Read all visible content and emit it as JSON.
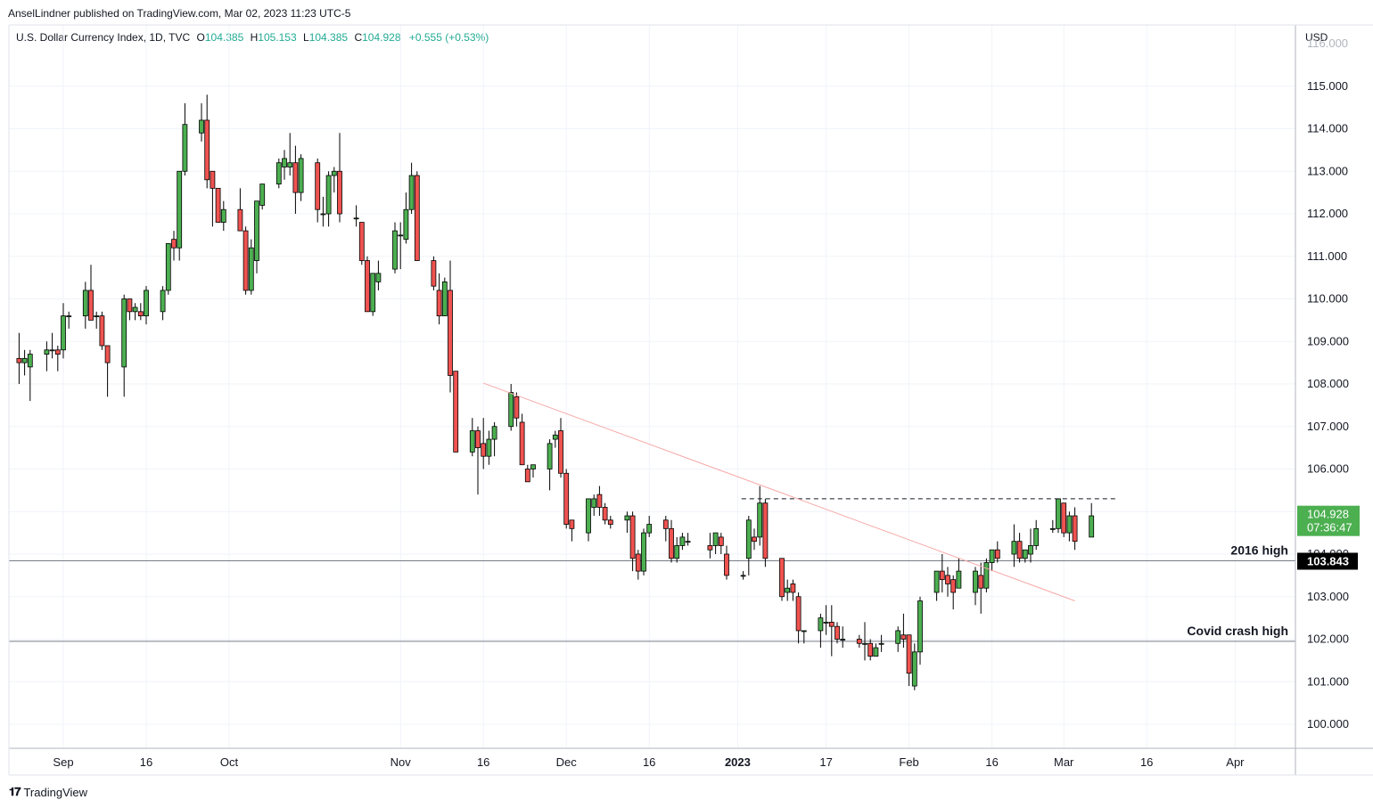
{
  "header": {
    "published_by": "AnselLindner published on TradingView.com, Mar 02, 2023 11:23 UTC-5"
  },
  "legend": {
    "symbol": "U.S. Dollar Currency Index, 1D, TVC",
    "open_label": "O",
    "open": "104.385",
    "high_label": "H",
    "high": "105.153",
    "low_label": "L",
    "low": "104.385",
    "close_label": "C",
    "close": "104.928",
    "change": "+0.555 (+0.53%)"
  },
  "currency": "USD",
  "footer": {
    "brand": "TradingView"
  },
  "colors": {
    "up": "#4caf50",
    "down": "#ef5350",
    "last_price_bg": "#4caf50",
    "level_label_bg": "#000000",
    "trendline": "#f7a8a8"
  },
  "chart_data": {
    "type": "candlestick",
    "y_ticks": [
      100,
      101,
      102,
      103,
      104,
      105,
      106,
      107,
      108,
      109,
      110,
      111,
      112,
      113,
      114,
      115
    ],
    "y_tick_labels": [
      "100.000",
      "101.000",
      "102.000",
      "103.000",
      "",
      "105.000",
      "106.000",
      "107.000",
      "108.000",
      "109.000",
      "110.000",
      "111.000",
      "112.000",
      "113.000",
      "114.000",
      "115.000"
    ],
    "ylim": [
      99.5,
      116
    ],
    "x_labels": [
      {
        "text": "Sep",
        "date": "2022-09-01"
      },
      {
        "text": "16",
        "date": "2022-09-16"
      },
      {
        "text": "Oct",
        "date": "2022-10-01"
      },
      {
        "text": "Nov",
        "date": "2022-11-01"
      },
      {
        "text": "16",
        "date": "2022-11-16"
      },
      {
        "text": "Dec",
        "date": "2022-12-01"
      },
      {
        "text": "16",
        "date": "2022-12-16"
      },
      {
        "text": "2023",
        "date": "2023-01-01",
        "bold": true
      },
      {
        "text": "17",
        "date": "2023-01-17"
      },
      {
        "text": "Feb",
        "date": "2023-02-01"
      },
      {
        "text": "16",
        "date": "2023-02-16"
      },
      {
        "text": "Mar",
        "date": "2023-03-01"
      },
      {
        "text": "16",
        "date": "2023-03-16"
      },
      {
        "text": "Apr",
        "date": "2023-04-01"
      }
    ],
    "candles": [
      {
        "d": "2022-08-24",
        "o": 108.6,
        "h": 109.2,
        "l": 108.0,
        "c": 108.5
      },
      {
        "d": "2022-08-25",
        "o": 108.5,
        "h": 108.8,
        "l": 108.2,
        "c": 108.6
      },
      {
        "d": "2022-08-26",
        "o": 108.4,
        "h": 108.8,
        "l": 107.6,
        "c": 108.7
      },
      {
        "d": "2022-08-29",
        "o": 108.7,
        "h": 109.0,
        "l": 108.3,
        "c": 108.8
      },
      {
        "d": "2022-08-30",
        "o": 108.8,
        "h": 109.2,
        "l": 108.6,
        "c": 108.8
      },
      {
        "d": "2022-08-31",
        "o": 108.8,
        "h": 108.9,
        "l": 108.3,
        "c": 108.7
      },
      {
        "d": "2022-09-01",
        "o": 108.8,
        "h": 109.9,
        "l": 108.6,
        "c": 109.6
      },
      {
        "d": "2022-09-02",
        "o": 109.6,
        "h": 109.7,
        "l": 109.3,
        "c": 109.6
      },
      {
        "d": "2022-09-05",
        "o": 109.6,
        "h": 110.4,
        "l": 109.3,
        "c": 110.2
      },
      {
        "d": "2022-09-06",
        "o": 110.2,
        "h": 110.8,
        "l": 109.6,
        "c": 109.5
      },
      {
        "d": "2022-09-07",
        "o": 109.6,
        "h": 109.7,
        "l": 109.3,
        "c": 109.6
      },
      {
        "d": "2022-09-08",
        "o": 109.6,
        "h": 109.7,
        "l": 108.8,
        "c": 108.9
      },
      {
        "d": "2022-09-09",
        "o": 108.9,
        "h": 108.9,
        "l": 107.7,
        "c": 108.5
      },
      {
        "d": "2022-09-12",
        "o": 108.4,
        "h": 110.1,
        "l": 107.7,
        "c": 110.0
      },
      {
        "d": "2022-09-13",
        "o": 110.0,
        "h": 110.0,
        "l": 109.5,
        "c": 109.7
      },
      {
        "d": "2022-09-14",
        "o": 109.7,
        "h": 109.9,
        "l": 109.5,
        "c": 109.8
      },
      {
        "d": "2022-09-15",
        "o": 109.7,
        "h": 109.9,
        "l": 109.5,
        "c": 109.6
      },
      {
        "d": "2022-09-16",
        "o": 109.6,
        "h": 110.3,
        "l": 109.4,
        "c": 110.2
      },
      {
        "d": "2022-09-19",
        "o": 109.7,
        "h": 110.3,
        "l": 109.5,
        "c": 110.2
      },
      {
        "d": "2022-09-20",
        "o": 110.2,
        "h": 111.3,
        "l": 110.1,
        "c": 111.3
      },
      {
        "d": "2022-09-21",
        "o": 111.4,
        "h": 111.6,
        "l": 110.9,
        "c": 111.2
      },
      {
        "d": "2022-09-22",
        "o": 111.2,
        "h": 113.0,
        "l": 110.9,
        "c": 113.0
      },
      {
        "d": "2022-09-23",
        "o": 113.0,
        "h": 114.6,
        "l": 112.9,
        "c": 114.1
      },
      {
        "d": "2022-09-26",
        "o": 113.9,
        "h": 114.6,
        "l": 113.7,
        "c": 114.2
      },
      {
        "d": "2022-09-27",
        "o": 114.2,
        "h": 114.8,
        "l": 112.6,
        "c": 112.8
      },
      {
        "d": "2022-09-28",
        "o": 113.0,
        "h": 113.0,
        "l": 111.7,
        "c": 112.6
      },
      {
        "d": "2022-09-29",
        "o": 112.6,
        "h": 112.6,
        "l": 111.8,
        "c": 111.8
      },
      {
        "d": "2022-09-30",
        "o": 111.8,
        "h": 112.3,
        "l": 111.6,
        "c": 112.1
      },
      {
        "d": "2022-10-03",
        "o": 112.1,
        "h": 112.6,
        "l": 111.6,
        "c": 111.6
      },
      {
        "d": "2022-10-04",
        "o": 111.6,
        "h": 111.7,
        "l": 110.1,
        "c": 110.2
      },
      {
        "d": "2022-10-05",
        "o": 110.2,
        "h": 111.4,
        "l": 110.1,
        "c": 111.2
      },
      {
        "d": "2022-10-06",
        "o": 110.9,
        "h": 112.3,
        "l": 110.6,
        "c": 112.3
      },
      {
        "d": "2022-10-07",
        "o": 112.2,
        "h": 112.7,
        "l": 112.1,
        "c": 112.7
      },
      {
        "d": "2022-10-10",
        "o": 112.7,
        "h": 113.3,
        "l": 112.6,
        "c": 113.2
      },
      {
        "d": "2022-10-11",
        "o": 113.1,
        "h": 113.5,
        "l": 112.8,
        "c": 113.3
      },
      {
        "d": "2022-10-12",
        "o": 113.1,
        "h": 113.9,
        "l": 112.9,
        "c": 113.2
      },
      {
        "d": "2022-10-13",
        "o": 113.2,
        "h": 113.6,
        "l": 112.0,
        "c": 112.5
      },
      {
        "d": "2022-10-14",
        "o": 112.5,
        "h": 113.4,
        "l": 112.3,
        "c": 113.3
      },
      {
        "d": "2022-10-17",
        "o": 113.2,
        "h": 113.3,
        "l": 111.8,
        "c": 112.1
      },
      {
        "d": "2022-10-18",
        "o": 112.0,
        "h": 112.4,
        "l": 111.7,
        "c": 112.0
      },
      {
        "d": "2022-10-19",
        "o": 112.0,
        "h": 113.0,
        "l": 111.7,
        "c": 112.9
      },
      {
        "d": "2022-10-20",
        "o": 112.9,
        "h": 113.1,
        "l": 112.5,
        "c": 113.0
      },
      {
        "d": "2022-10-21",
        "o": 113.0,
        "h": 113.9,
        "l": 111.8,
        "c": 112.0
      },
      {
        "d": "2022-10-24",
        "o": 111.9,
        "h": 112.2,
        "l": 111.7,
        "c": 111.9
      },
      {
        "d": "2022-10-25",
        "o": 111.8,
        "h": 111.8,
        "l": 110.8,
        "c": 110.9
      },
      {
        "d": "2022-10-26",
        "o": 110.9,
        "h": 111.0,
        "l": 109.7,
        "c": 109.7
      },
      {
        "d": "2022-10-27",
        "o": 109.7,
        "h": 110.6,
        "l": 109.6,
        "c": 110.6
      },
      {
        "d": "2022-10-28",
        "o": 110.4,
        "h": 110.9,
        "l": 110.2,
        "c": 110.6
      },
      {
        "d": "2022-10-31",
        "o": 110.7,
        "h": 111.8,
        "l": 110.6,
        "c": 111.6
      },
      {
        "d": "2022-11-01",
        "o": 111.5,
        "h": 111.8,
        "l": 110.7,
        "c": 111.5
      },
      {
        "d": "2022-11-02",
        "o": 111.4,
        "h": 112.5,
        "l": 111.3,
        "c": 112.1
      },
      {
        "d": "2022-11-03",
        "o": 112.1,
        "h": 113.2,
        "l": 112.0,
        "c": 112.9
      },
      {
        "d": "2022-11-04",
        "o": 112.9,
        "h": 113.0,
        "l": 110.9,
        "c": 110.9
      },
      {
        "d": "2022-11-07",
        "o": 110.9,
        "h": 111.0,
        "l": 110.2,
        "c": 110.3
      },
      {
        "d": "2022-11-08",
        "o": 110.2,
        "h": 110.6,
        "l": 109.4,
        "c": 109.6
      },
      {
        "d": "2022-11-09",
        "o": 109.6,
        "h": 110.5,
        "l": 109.6,
        "c": 110.4
      },
      {
        "d": "2022-11-10",
        "o": 110.2,
        "h": 110.9,
        "l": 107.8,
        "c": 108.2
      },
      {
        "d": "2022-11-11",
        "o": 108.3,
        "h": 108.3,
        "l": 106.4,
        "c": 106.4
      },
      {
        "d": "2022-11-14",
        "o": 106.4,
        "h": 107.2,
        "l": 106.3,
        "c": 106.9
      },
      {
        "d": "2022-11-15",
        "o": 106.9,
        "h": 107.0,
        "l": 105.4,
        "c": 106.5
      },
      {
        "d": "2022-11-16",
        "o": 106.6,
        "h": 107.2,
        "l": 106.0,
        "c": 106.3
      },
      {
        "d": "2022-11-17",
        "o": 106.3,
        "h": 106.9,
        "l": 106.1,
        "c": 106.7
      },
      {
        "d": "2022-11-18",
        "o": 106.7,
        "h": 107.1,
        "l": 106.3,
        "c": 107.0
      },
      {
        "d": "2022-11-21",
        "o": 107.0,
        "h": 108.0,
        "l": 106.9,
        "c": 107.8
      },
      {
        "d": "2022-11-22",
        "o": 107.7,
        "h": 107.8,
        "l": 107.0,
        "c": 107.2
      },
      {
        "d": "2022-11-23",
        "o": 107.1,
        "h": 107.3,
        "l": 106.1,
        "c": 106.1
      },
      {
        "d": "2022-11-24",
        "o": 106.0,
        "h": 106.1,
        "l": 105.7,
        "c": 105.7
      },
      {
        "d": "2022-11-25",
        "o": 106.0,
        "h": 106.1,
        "l": 105.8,
        "c": 106.1
      },
      {
        "d": "2022-11-28",
        "o": 106.0,
        "h": 106.7,
        "l": 105.5,
        "c": 106.6
      },
      {
        "d": "2022-11-29",
        "o": 106.7,
        "h": 106.9,
        "l": 106.5,
        "c": 106.8
      },
      {
        "d": "2022-11-30",
        "o": 106.9,
        "h": 107.2,
        "l": 105.8,
        "c": 105.9
      },
      {
        "d": "2022-12-01",
        "o": 105.9,
        "h": 106.0,
        "l": 104.6,
        "c": 104.7
      },
      {
        "d": "2022-12-02",
        "o": 104.8,
        "h": 104.8,
        "l": 104.3,
        "c": 104.6
      },
      {
        "d": "2022-12-05",
        "o": 104.5,
        "h": 105.3,
        "l": 104.3,
        "c": 105.3
      },
      {
        "d": "2022-12-06",
        "o": 105.1,
        "h": 105.4,
        "l": 104.9,
        "c": 105.3
      },
      {
        "d": "2022-12-07",
        "o": 105.4,
        "h": 105.6,
        "l": 104.9,
        "c": 105.1
      },
      {
        "d": "2022-12-08",
        "o": 105.1,
        "h": 105.2,
        "l": 104.7,
        "c": 104.8
      },
      {
        "d": "2022-12-09",
        "o": 104.8,
        "h": 104.9,
        "l": 104.6,
        "c": 104.7
      },
      {
        "d": "2022-12-12",
        "o": 104.8,
        "h": 105.0,
        "l": 104.5,
        "c": 104.9
      },
      {
        "d": "2022-12-13",
        "o": 104.9,
        "h": 105.0,
        "l": 103.6,
        "c": 103.9
      },
      {
        "d": "2022-12-14",
        "o": 104.0,
        "h": 104.1,
        "l": 103.4,
        "c": 103.6
      },
      {
        "d": "2022-12-15",
        "o": 103.6,
        "h": 104.6,
        "l": 103.5,
        "c": 104.5
      },
      {
        "d": "2022-12-16",
        "o": 104.5,
        "h": 104.9,
        "l": 104.4,
        "c": 104.7
      },
      {
        "d": "2022-12-19",
        "o": 104.8,
        "h": 104.9,
        "l": 104.3,
        "c": 104.6
      },
      {
        "d": "2022-12-20",
        "o": 104.6,
        "h": 104.8,
        "l": 103.8,
        "c": 103.9
      },
      {
        "d": "2022-12-21",
        "o": 103.9,
        "h": 104.4,
        "l": 103.8,
        "c": 104.2
      },
      {
        "d": "2022-12-22",
        "o": 104.2,
        "h": 104.5,
        "l": 104.1,
        "c": 104.4
      },
      {
        "d": "2022-12-23",
        "o": 104.3,
        "h": 104.5,
        "l": 104.2,
        "c": 104.3
      },
      {
        "d": "2022-12-27",
        "o": 104.2,
        "h": 104.5,
        "l": 103.9,
        "c": 104.1
      },
      {
        "d": "2022-12-28",
        "o": 104.2,
        "h": 104.5,
        "l": 104.0,
        "c": 104.5
      },
      {
        "d": "2022-12-29",
        "o": 104.4,
        "h": 104.5,
        "l": 104.0,
        "c": 104.2
      },
      {
        "d": "2022-12-30",
        "o": 104.0,
        "h": 104.2,
        "l": 103.4,
        "c": 103.5
      },
      {
        "d": "2023-01-02",
        "o": 103.5,
        "h": 103.6,
        "l": 103.4,
        "c": 103.5
      },
      {
        "d": "2023-01-03",
        "o": 103.9,
        "h": 104.9,
        "l": 103.5,
        "c": 104.8
      },
      {
        "d": "2023-01-04",
        "o": 104.4,
        "h": 104.6,
        "l": 104.1,
        "c": 104.3
      },
      {
        "d": "2023-01-05",
        "o": 104.4,
        "h": 105.6,
        "l": 104.2,
        "c": 105.2
      },
      {
        "d": "2023-01-06",
        "o": 105.2,
        "h": 105.3,
        "l": 103.7,
        "c": 103.9
      },
      {
        "d": "2023-01-09",
        "o": 103.9,
        "h": 103.9,
        "l": 102.9,
        "c": 103.0
      },
      {
        "d": "2023-01-10",
        "o": 103.1,
        "h": 103.4,
        "l": 102.9,
        "c": 103.2
      },
      {
        "d": "2023-01-11",
        "o": 103.3,
        "h": 103.4,
        "l": 102.9,
        "c": 103.1
      },
      {
        "d": "2023-01-12",
        "o": 103.0,
        "h": 103.1,
        "l": 101.9,
        "c": 102.2
      },
      {
        "d": "2023-01-13",
        "o": 102.2,
        "h": 102.2,
        "l": 101.9,
        "c": 102.2
      },
      {
        "d": "2023-01-16",
        "o": 102.2,
        "h": 102.6,
        "l": 101.8,
        "c": 102.5
      },
      {
        "d": "2023-01-17",
        "o": 102.4,
        "h": 102.8,
        "l": 102.1,
        "c": 102.4
      },
      {
        "d": "2023-01-18",
        "o": 102.4,
        "h": 102.8,
        "l": 101.6,
        "c": 102.3
      },
      {
        "d": "2023-01-19",
        "o": 102.3,
        "h": 102.4,
        "l": 101.9,
        "c": 102.0
      },
      {
        "d": "2023-01-20",
        "o": 102.0,
        "h": 102.3,
        "l": 101.8,
        "c": 102.0
      },
      {
        "d": "2023-01-23",
        "o": 102.0,
        "h": 102.1,
        "l": 101.8,
        "c": 101.9
      },
      {
        "d": "2023-01-24",
        "o": 101.9,
        "h": 102.4,
        "l": 101.5,
        "c": 101.9
      },
      {
        "d": "2023-01-25",
        "o": 101.9,
        "h": 102.0,
        "l": 101.5,
        "c": 101.6
      },
      {
        "d": "2023-01-26",
        "o": 101.6,
        "h": 101.9,
        "l": 101.6,
        "c": 101.8
      },
      {
        "d": "2023-01-27",
        "o": 101.9,
        "h": 102.1,
        "l": 101.7,
        "c": 101.9
      },
      {
        "d": "2023-01-30",
        "o": 101.9,
        "h": 102.3,
        "l": 101.7,
        "c": 102.2
      },
      {
        "d": "2023-01-31",
        "o": 102.1,
        "h": 102.6,
        "l": 101.8,
        "c": 102.0
      },
      {
        "d": "2023-02-01",
        "o": 102.1,
        "h": 102.1,
        "l": 100.9,
        "c": 101.2
      },
      {
        "d": "2023-02-02",
        "o": 100.9,
        "h": 101.9,
        "l": 100.8,
        "c": 101.7
      },
      {
        "d": "2023-02-03",
        "o": 101.7,
        "h": 103.0,
        "l": 101.4,
        "c": 102.9
      },
      {
        "d": "2023-02-06",
        "o": 103.1,
        "h": 103.6,
        "l": 102.9,
        "c": 103.6
      },
      {
        "d": "2023-02-07",
        "o": 103.6,
        "h": 104.0,
        "l": 103.1,
        "c": 103.4
      },
      {
        "d": "2023-02-08",
        "o": 103.5,
        "h": 103.7,
        "l": 103.0,
        "c": 103.3
      },
      {
        "d": "2023-02-09",
        "o": 103.4,
        "h": 103.5,
        "l": 102.7,
        "c": 103.1
      },
      {
        "d": "2023-02-10",
        "o": 103.2,
        "h": 103.9,
        "l": 103.2,
        "c": 103.6
      },
      {
        "d": "2023-02-13",
        "o": 103.1,
        "h": 103.7,
        "l": 102.8,
        "c": 103.6
      },
      {
        "d": "2023-02-14",
        "o": 103.5,
        "h": 103.8,
        "l": 102.6,
        "c": 103.2
      },
      {
        "d": "2023-02-15",
        "o": 103.2,
        "h": 103.9,
        "l": 103.1,
        "c": 103.8
      },
      {
        "d": "2023-02-16",
        "o": 103.8,
        "h": 104.1,
        "l": 103.6,
        "c": 104.1
      },
      {
        "d": "2023-02-17",
        "o": 104.1,
        "h": 104.3,
        "l": 103.8,
        "c": 103.9
      },
      {
        "d": "2023-02-20",
        "o": 104.0,
        "h": 104.7,
        "l": 103.7,
        "c": 104.3
      },
      {
        "d": "2023-02-21",
        "o": 104.3,
        "h": 104.5,
        "l": 103.8,
        "c": 103.9
      },
      {
        "d": "2023-02-22",
        "o": 103.9,
        "h": 104.1,
        "l": 103.8,
        "c": 104.1
      },
      {
        "d": "2023-02-23",
        "o": 104.0,
        "h": 104.6,
        "l": 103.8,
        "c": 104.2
      },
      {
        "d": "2023-02-24",
        "o": 104.2,
        "h": 104.8,
        "l": 104.1,
        "c": 104.6
      },
      {
        "d": "2023-02-27",
        "o": 104.6,
        "h": 104.8,
        "l": 104.5,
        "c": 104.6
      },
      {
        "d": "2023-02-28",
        "o": 104.6,
        "h": 105.3,
        "l": 104.5,
        "c": 105.3
      },
      {
        "d": "2023-03-01",
        "o": 105.2,
        "h": 105.2,
        "l": 104.4,
        "c": 104.5
      },
      {
        "d": "2023-03-02",
        "o": 104.5,
        "h": 105.0,
        "l": 104.3,
        "c": 104.9
      },
      {
        "d": "2023-03-03",
        "o": 104.9,
        "h": 105.1,
        "l": 104.1,
        "c": 104.3
      },
      {
        "d": "2023-03-06",
        "o": 104.4,
        "h": 105.2,
        "l": 104.4,
        "c": 104.9
      }
    ],
    "levels": [
      {
        "name": "2016 high",
        "price": 103.843,
        "price_label": "103.843"
      },
      {
        "name": "Covid crash high",
        "price": 101.95
      }
    ],
    "resistance_line": {
      "start": "2023-01-03",
      "end": "2023-03-08",
      "price": 105.3
    },
    "trendline": {
      "start": {
        "d": "2022-11-16",
        "p": 108.02
      },
      "end": {
        "d": "2023-03-03",
        "p": 102.9
      }
    },
    "last_price": {
      "value": "104.928",
      "countdown": "07:36:47"
    },
    "partial_tick_label": "104.000",
    "top_cut_label": "116.000"
  }
}
